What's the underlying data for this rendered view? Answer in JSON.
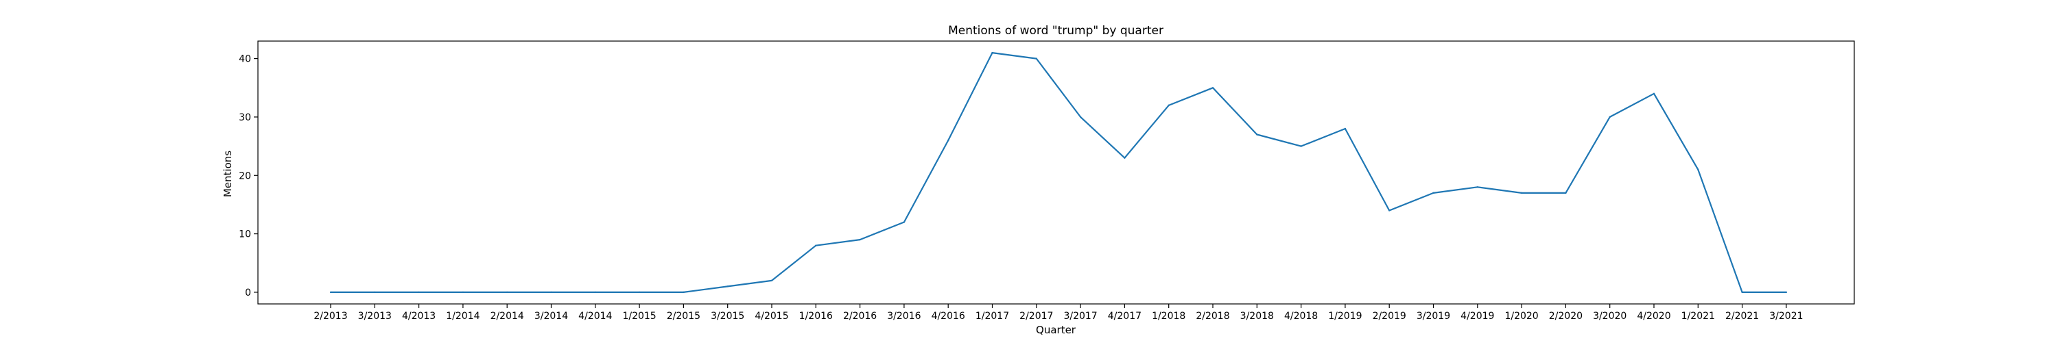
{
  "chart_data": {
    "type": "line",
    "title": "Mentions of word \"trump\" by quarter",
    "xlabel": "Quarter",
    "ylabel": "Mentions",
    "ylim": [
      -2,
      43
    ],
    "yticks": [
      0,
      10,
      20,
      30,
      40
    ],
    "grid": false,
    "categories": [
      "2/2013",
      "3/2013",
      "4/2013",
      "1/2014",
      "2/2014",
      "3/2014",
      "4/2014",
      "1/2015",
      "2/2015",
      "3/2015",
      "4/2015",
      "1/2016",
      "2/2016",
      "3/2016",
      "4/2016",
      "1/2017",
      "2/2017",
      "3/2017",
      "4/2017",
      "1/2018",
      "2/2018",
      "3/2018",
      "4/2018",
      "1/2019",
      "2/2019",
      "3/2019",
      "4/2019",
      "1/2020",
      "2/2020",
      "3/2020",
      "4/2020",
      "1/2021",
      "2/2021",
      "3/2021"
    ],
    "series": [
      {
        "color": "#1f77b4",
        "values": [
          0,
          0,
          0,
          0,
          0,
          0,
          0,
          0,
          0,
          1,
          2,
          8,
          9,
          12,
          26,
          41,
          40,
          30,
          23,
          32,
          35,
          27,
          25,
          28,
          14,
          17,
          18,
          17,
          17,
          30,
          34,
          21,
          0,
          0
        ]
      }
    ]
  }
}
